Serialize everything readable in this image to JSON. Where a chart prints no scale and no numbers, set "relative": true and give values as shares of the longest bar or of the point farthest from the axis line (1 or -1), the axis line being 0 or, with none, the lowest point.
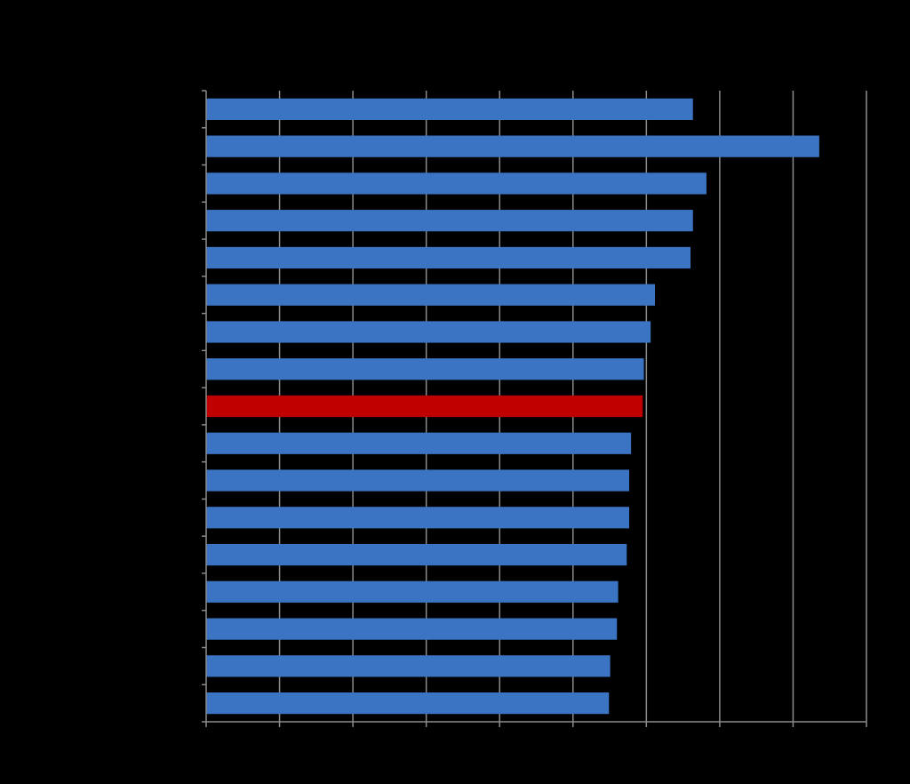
{
  "chart_data": {
    "type": "bar",
    "orientation": "horizontal",
    "relative": true,
    "grid": "x",
    "categories": [
      null,
      null,
      null,
      null,
      null,
      null,
      null,
      null,
      null,
      null,
      null,
      null,
      null,
      null,
      null,
      null,
      null
    ],
    "values": [
      0.794,
      1,
      0.816,
      0.794,
      0.79,
      0.732,
      0.725,
      0.714,
      0.712,
      0.693,
      0.69,
      0.69,
      0.686,
      0.672,
      0.67,
      0.659,
      0.657
    ],
    "colors": [
      "#3a74c2",
      "#3a74c2",
      "#3a74c2",
      "#3a74c2",
      "#3a74c2",
      "#3a74c2",
      "#3a74c2",
      "#3a74c2",
      "#c00000",
      "#3a74c2",
      "#3a74c2",
      "#3a74c2",
      "#3a74c2",
      "#3a74c2",
      "#3a74c2",
      "#3a74c2",
      "#3a74c2"
    ]
  }
}
